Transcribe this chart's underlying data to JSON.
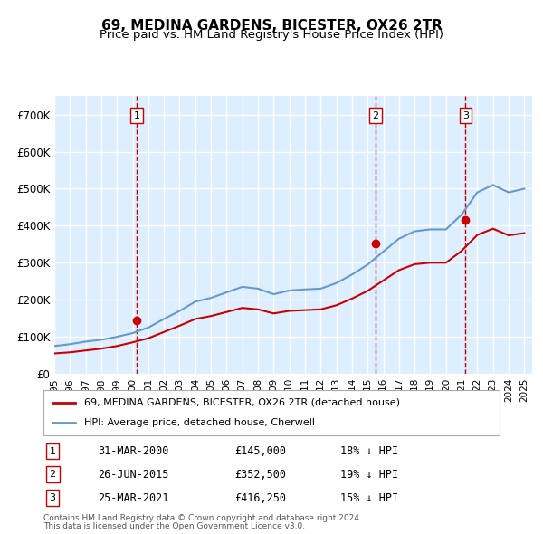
{
  "title": "69, MEDINA GARDENS, BICESTER, OX26 2TR",
  "subtitle": "Price paid vs. HM Land Registry's House Price Index (HPI)",
  "footnote1": "Contains HM Land Registry data © Crown copyright and database right 2024.",
  "footnote2": "This data is licensed under the Open Government Licence v3.0.",
  "legend_line1": "69, MEDINA GARDENS, BICESTER, OX26 2TR (detached house)",
  "legend_line2": "HPI: Average price, detached house, Cherwell",
  "transactions": [
    {
      "label": "1",
      "date": "31-MAR-2000",
      "price": "£145,000",
      "hpi": "18% ↓ HPI"
    },
    {
      "label": "2",
      "date": "26-JUN-2015",
      "price": "£352,500",
      "hpi": "19% ↓ HPI"
    },
    {
      "label": "3",
      "date": "25-MAR-2021",
      "price": "£416,250",
      "hpi": "15% ↓ HPI"
    }
  ],
  "red_color": "#cc0000",
  "blue_color": "#6699cc",
  "background_color": "#ddeeff",
  "grid_color": "#ffffff",
  "dashed_line_color": "#cc0000",
  "ylim": [
    0,
    750000
  ],
  "yticks": [
    0,
    100000,
    200000,
    300000,
    400000,
    500000,
    600000,
    700000
  ],
  "xlim_start": 1995.0,
  "xlim_end": 2025.5,
  "transaction_years": [
    2000.25,
    2015.5,
    2021.25
  ],
  "hpi_years": [
    1995,
    1996,
    1997,
    1998,
    1999,
    2000,
    2001,
    2002,
    2003,
    2004,
    2005,
    2006,
    2007,
    2008,
    2009,
    2010,
    2011,
    2012,
    2013,
    2014,
    2015,
    2016,
    2017,
    2018,
    2019,
    2020,
    2021,
    2022,
    2023,
    2024,
    2025
  ],
  "hpi_values": [
    75000,
    80000,
    87000,
    92000,
    100000,
    110000,
    125000,
    148000,
    170000,
    195000,
    205000,
    220000,
    235000,
    230000,
    215000,
    225000,
    228000,
    230000,
    245000,
    268000,
    295000,
    330000,
    365000,
    385000,
    390000,
    390000,
    430000,
    490000,
    510000,
    490000,
    500000
  ],
  "price_years": [
    1995,
    1996,
    1997,
    1998,
    1999,
    2000,
    2001,
    2002,
    2003,
    2004,
    2005,
    2006,
    2007,
    2008,
    2009,
    2010,
    2011,
    2012,
    2013,
    2014,
    2015,
    2016,
    2017,
    2018,
    2019,
    2020,
    2021,
    2022,
    2023,
    2024,
    2025
  ],
  "price_values": [
    55000,
    58000,
    63000,
    68000,
    75000,
    85000,
    96000,
    113000,
    130000,
    148000,
    156000,
    167000,
    178000,
    174000,
    163000,
    170000,
    172000,
    174000,
    185000,
    203000,
    224000,
    252000,
    280000,
    296000,
    300000,
    300000,
    332000,
    375000,
    392000,
    374000,
    380000
  ],
  "xtick_years": [
    1995,
    1996,
    1997,
    1998,
    1999,
    2000,
    2001,
    2002,
    2003,
    2004,
    2005,
    2006,
    2007,
    2008,
    2009,
    2010,
    2011,
    2012,
    2013,
    2014,
    2015,
    2016,
    2017,
    2018,
    2019,
    2020,
    2021,
    2022,
    2023,
    2024,
    2025
  ]
}
